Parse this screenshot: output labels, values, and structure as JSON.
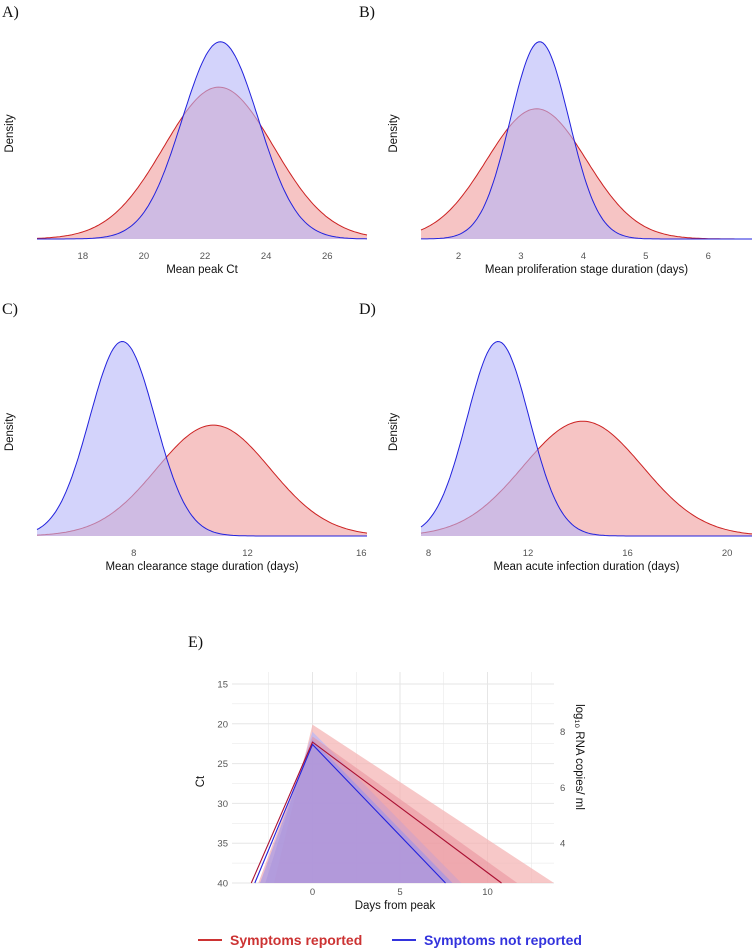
{
  "colors": {
    "reported_line": "#cc2222",
    "reported_fill": "#f3b0b0",
    "not_reported_line": "#2222dd",
    "not_reported_fill": "#b6b6f8",
    "overlap_fill": "#c99bc4"
  },
  "legend": {
    "items": [
      {
        "label": "Symptoms reported",
        "color": "#cc3333"
      },
      {
        "label": "Symptoms not reported",
        "color": "#3333dd"
      }
    ]
  },
  "chart_data": [
    {
      "panel": "A)",
      "type": "area",
      "kind": "density",
      "xlabel": "Mean peak Ct",
      "ylabel": "Density",
      "xlim": [
        16.5,
        27.3
      ],
      "xticks": [
        18,
        20,
        22,
        24,
        26
      ],
      "ylim": [
        0,
        1.1
      ],
      "series": [
        {
          "name": "Symptoms reported",
          "mean": 22.45,
          "sd": 1.8,
          "peak": 0.77
        },
        {
          "name": "Symptoms not reported",
          "mean": 22.5,
          "sd": 1.25,
          "peak": 1.0
        }
      ]
    },
    {
      "panel": "B)",
      "type": "area",
      "kind": "density",
      "xlabel": "Mean proliferation stage duration (days)",
      "ylabel": "Density",
      "xlim": [
        1.4,
        6.7
      ],
      "xticks": [
        2,
        3,
        4,
        5,
        6
      ],
      "ylim": [
        0,
        1.1
      ],
      "series": [
        {
          "name": "Symptoms reported",
          "mean": 3.25,
          "sd": 0.8,
          "peak": 0.66
        },
        {
          "name": "Symptoms not reported",
          "mean": 3.3,
          "sd": 0.47,
          "peak": 1.0
        }
      ]
    },
    {
      "panel": "C)",
      "type": "area",
      "kind": "density",
      "xlabel": "Mean clearance stage duration (days)",
      "ylabel": "Density",
      "xlim": [
        4.6,
        16.2
      ],
      "xticks": [
        8,
        12,
        16
      ],
      "ylim": [
        0,
        1.1
      ],
      "series": [
        {
          "name": "Symptoms reported",
          "mean": 10.8,
          "sd": 2.0,
          "peak": 0.57
        },
        {
          "name": "Symptoms not reported",
          "mean": 7.6,
          "sd": 1.15,
          "peak": 1.0
        }
      ]
    },
    {
      "panel": "D)",
      "type": "area",
      "kind": "density",
      "xlabel": "Mean acute infection duration (days)",
      "ylabel": "Density",
      "xlim": [
        7.7,
        21.0
      ],
      "xticks": [
        8,
        12,
        16,
        20
      ],
      "ylim": [
        0,
        1.1
      ],
      "series": [
        {
          "name": "Symptoms reported",
          "mean": 14.2,
          "sd": 2.4,
          "peak": 0.59
        },
        {
          "name": "Symptoms not reported",
          "mean": 10.8,
          "sd": 1.25,
          "peak": 1.0
        }
      ]
    },
    {
      "panel": "E)",
      "type": "line",
      "xlabel": "Days from peak",
      "ylabel": "Ct",
      "y2label": "log₁₀ RNA copies/ ml",
      "xlim": [
        -4.6,
        13.8
      ],
      "ylim": [
        40,
        13.5
      ],
      "y_reversed": true,
      "xticks": [
        0,
        5,
        10
      ],
      "yticks": [
        15,
        20,
        25,
        30,
        35,
        40
      ],
      "y2ticks": [
        {
          "label": "8",
          "ct": 21.0
        },
        {
          "label": "6",
          "ct": 28.0
        },
        {
          "label": "4",
          "ct": 35.0
        }
      ],
      "series": [
        {
          "name": "Symptoms reported",
          "x": [
            -3.5,
            0,
            10.8
          ],
          "y": [
            40,
            22.3,
            40
          ],
          "band_outer": {
            "x": [
              -4.6,
              -2.2,
              0,
              13.8,
              11.0
            ],
            "lower": [
              40,
              40,
              20.1,
              40,
              40
            ],
            "upper_note": "polygon vertices",
            "y": [
              40,
              40,
              20.1,
              40,
              40
            ],
            "y_inner": [
              24.5
            ]
          },
          "band_inner": {
            "x": [
              -3.8,
              -3.1,
              0,
              11.7,
              9.7
            ],
            "y": [
              40,
              40,
              21.6,
              40,
              40
            ]
          }
        },
        {
          "name": "Symptoms not reported",
          "x": [
            -3.3,
            0,
            7.6
          ],
          "y": [
            40,
            22.6,
            40
          ],
          "band_outer": {
            "x": [
              -4.1,
              -2.7,
              0,
              8.5,
              6.1
            ],
            "y": [
              40,
              40,
              21.0,
              40,
              40
            ]
          },
          "band_inner": {
            "x": [
              -3.6,
              -3.0,
              0,
              8.0,
              7.0
            ],
            "y": [
              40,
              40,
              22.0,
              40,
              40
            ]
          }
        }
      ]
    }
  ]
}
